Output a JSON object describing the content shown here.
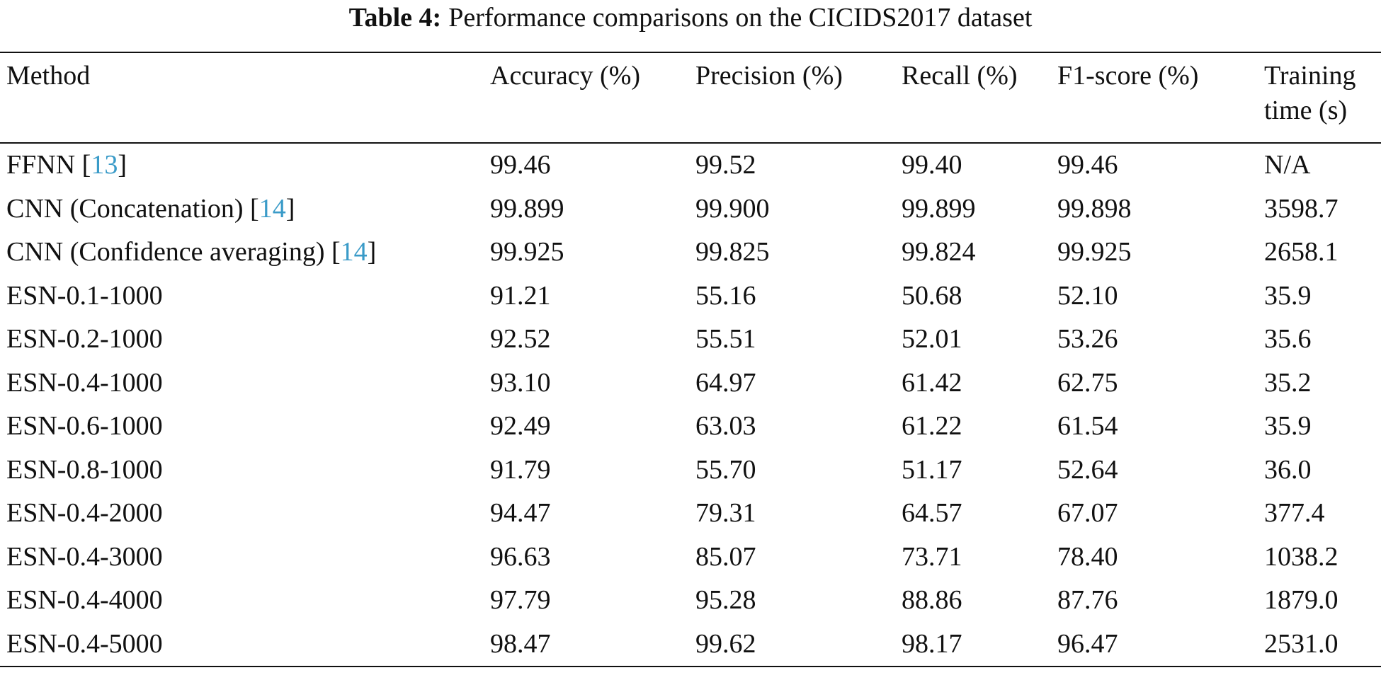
{
  "caption": {
    "label": "Table 4:",
    "text": "Performance comparisons on the CICIDS2017 dataset"
  },
  "table": {
    "header": [
      "Method",
      "Accuracy (%)",
      "Precision (%)",
      "Recall (%)",
      "F1-score (%)",
      "Training time (s)"
    ],
    "rows": [
      [
        {
          "text": "FFNN [",
          "ref": "13",
          "after": "]"
        },
        "99.46",
        "99.52",
        "99.40",
        "99.46",
        "N/A"
      ],
      [
        {
          "text": "CNN (Concatenation) [",
          "ref": "14",
          "after": "]"
        },
        "99.899",
        "99.900",
        "99.899",
        "99.898",
        "3598.7"
      ],
      [
        {
          "text": "CNN (Confidence averaging) [",
          "ref": "14",
          "after": "]"
        },
        "99.925",
        "99.825",
        "99.824",
        "99.925",
        "2658.1"
      ],
      [
        "ESN-0.1-1000",
        "91.21",
        "55.16",
        "50.68",
        "52.10",
        "35.9"
      ],
      [
        "ESN-0.2-1000",
        "92.52",
        "55.51",
        "52.01",
        "53.26",
        "35.6"
      ],
      [
        "ESN-0.4-1000",
        "93.10",
        "64.97",
        "61.42",
        "62.75",
        "35.2"
      ],
      [
        "ESN-0.6-1000",
        "92.49",
        "63.03",
        "61.22",
        "61.54",
        "35.9"
      ],
      [
        "ESN-0.8-1000",
        "91.79",
        "55.70",
        "51.17",
        "52.64",
        "36.0"
      ],
      [
        "ESN-0.4-2000",
        "94.47",
        "79.31",
        "64.57",
        "67.07",
        "377.4"
      ],
      [
        "ESN-0.4-3000",
        "96.63",
        "85.07",
        "73.71",
        "78.40",
        "1038.2"
      ],
      [
        "ESN-0.4-4000",
        "97.79",
        "95.28",
        "88.86",
        "87.76",
        "1879.0"
      ],
      [
        "ESN-0.4-5000",
        "98.47",
        "99.62",
        "98.17",
        "96.47",
        "2531.0"
      ]
    ]
  }
}
